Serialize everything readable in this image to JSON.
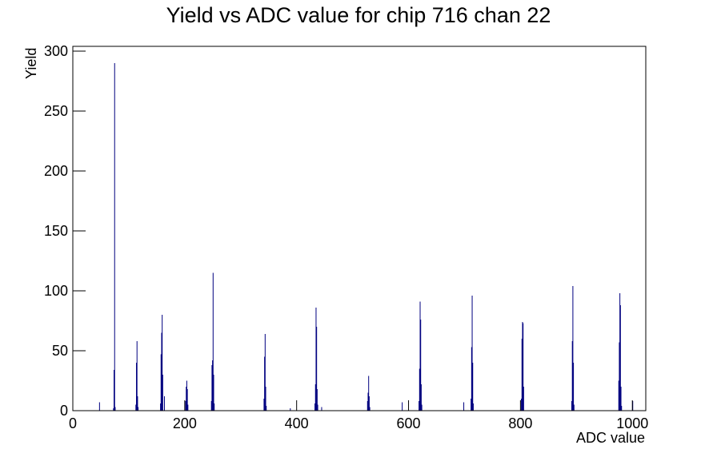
{
  "chart_data": {
    "type": "histogram",
    "title": "Yield vs ADC value for chip 716 chan 22",
    "x_label": "ADC value",
    "y_label": "Yield",
    "color": "#000080",
    "x": [
      47,
      72,
      73,
      74,
      75,
      112,
      113,
      114,
      115,
      116,
      156,
      157,
      158,
      159,
      160,
      163,
      201,
      202,
      203,
      204,
      205,
      247,
      248,
      249,
      250,
      251,
      252,
      341,
      342,
      343,
      344,
      345,
      388,
      432,
      433,
      434,
      435,
      436,
      437,
      444,
      526,
      527,
      528,
      529,
      530,
      588,
      618,
      619,
      620,
      621,
      622,
      623,
      698,
      711,
      712,
      713,
      714,
      715,
      801,
      802,
      803,
      804,
      805,
      891,
      892,
      893,
      894,
      895,
      975,
      976,
      977,
      978,
      979,
      980,
      1000
    ],
    "values": [
      7,
      2,
      34,
      290,
      3,
      5,
      40,
      58,
      12,
      3,
      6,
      47,
      65,
      80,
      30,
      12,
      8,
      20,
      25,
      18,
      5,
      8,
      38,
      42,
      115,
      30,
      6,
      10,
      45,
      64,
      20,
      4,
      2,
      6,
      22,
      86,
      70,
      18,
      5,
      3,
      8,
      15,
      29,
      12,
      3,
      7,
      8,
      35,
      91,
      76,
      22,
      5,
      7,
      10,
      53,
      96,
      40,
      6,
      10,
      60,
      74,
      73,
      20,
      8,
      58,
      104,
      40,
      5,
      25,
      57,
      98,
      88,
      20,
      4,
      8
    ],
    "xlim": [
      0,
      1024
    ],
    "ylim": [
      0,
      304
    ],
    "xticks": [
      0,
      200,
      400,
      600,
      800,
      1000
    ],
    "yticks": [
      0,
      50,
      100,
      150,
      200,
      250,
      300
    ]
  }
}
